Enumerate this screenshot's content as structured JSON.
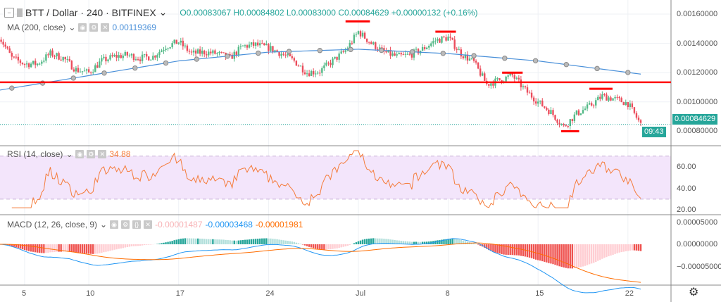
{
  "header": {
    "symbol": "BTT / Dollar · 240 · BITFINEX",
    "o": "O0.00083067",
    "h": "H0.00084802",
    "l": "L0.00083000",
    "c": "C0.00084629",
    "change": "+0.00000132 (+0.16%)"
  },
  "ma": {
    "label": "MA (200, close)",
    "value": "0.00119369",
    "color": "#4a90d9"
  },
  "rsi": {
    "label": "RSI (14, close)",
    "value": "34.88",
    "color": "#f57c3b"
  },
  "macd": {
    "label": "MACD (12, 26, close, 9)",
    "hist": "-0.00001487",
    "macd": "-0.00003468",
    "signal": "-0.00001981"
  },
  "price_label": "0.00084629",
  "countdown": "09:43",
  "colors": {
    "up": "#53b987",
    "down": "#eb4d5c",
    "support": "#ff0000"
  },
  "chart_data": {
    "type": "candlestick",
    "interval": "240",
    "price_axis": {
      "ticks": [
        "0.00160000",
        "0.00140000",
        "0.00120000",
        "0.00100000",
        "0.00080000"
      ],
      "range": [
        0.00075,
        0.00168
      ]
    },
    "rsi_axis": {
      "ticks": [
        "60.00",
        "40.00",
        "20.00"
      ],
      "bands": [
        30,
        70
      ]
    },
    "macd_axis": {
      "ticks": [
        "0.00005000",
        "0.00000000",
        "-0.00005000"
      ]
    },
    "x_ticks": [
      {
        "date": "06-05",
        "label": "5"
      },
      {
        "date": "06-10",
        "label": "10"
      },
      {
        "date": "06-17",
        "label": "17"
      },
      {
        "date": "06-24",
        "label": "24"
      },
      {
        "date": "07-01",
        "label": "Jul"
      },
      {
        "date": "07-08",
        "label": "8"
      },
      {
        "date": "07-15",
        "label": "15"
      },
      {
        "date": "07-22",
        "label": "22"
      }
    ],
    "daily_close": [
      [
        "06-03",
        0.00145
      ],
      [
        "06-04",
        0.0013
      ],
      [
        "06-05",
        0.00126
      ],
      [
        "06-06",
        0.00126
      ],
      [
        "06-07",
        0.00133
      ],
      [
        "06-08",
        0.0013
      ],
      [
        "06-09",
        0.00122
      ],
      [
        "06-10",
        0.0012
      ],
      [
        "06-11",
        0.00128
      ],
      [
        "06-12",
        0.00131
      ],
      [
        "06-13",
        0.00132
      ],
      [
        "06-14",
        0.0013
      ],
      [
        "06-15",
        0.00131
      ],
      [
        "06-16",
        0.00138
      ],
      [
        "06-17",
        0.00141
      ],
      [
        "06-18",
        0.00133
      ],
      [
        "06-19",
        0.00134
      ],
      [
        "06-20",
        0.00133
      ],
      [
        "06-21",
        0.0013
      ],
      [
        "06-22",
        0.00138
      ],
      [
        "06-23",
        0.00139
      ],
      [
        "06-24",
        0.00137
      ],
      [
        "06-25",
        0.00133
      ],
      [
        "06-26",
        0.00128
      ],
      [
        "06-27",
        0.0012
      ],
      [
        "06-28",
        0.00121
      ],
      [
        "06-29",
        0.00128
      ],
      [
        "06-30",
        0.00135
      ],
      [
        "07-01",
        0.00148
      ],
      [
        "07-02",
        0.0014
      ],
      [
        "07-03",
        0.00134
      ],
      [
        "07-04",
        0.00131
      ],
      [
        "07-05",
        0.00132
      ],
      [
        "07-06",
        0.00136
      ],
      [
        "07-07",
        0.00142
      ],
      [
        "07-08",
        0.00144
      ],
      [
        "07-09",
        0.00133
      ],
      [
        "07-10",
        0.00127
      ],
      [
        "07-11",
        0.00112
      ],
      [
        "07-12",
        0.00115
      ],
      [
        "07-13",
        0.00118
      ],
      [
        "07-14",
        0.00108
      ],
      [
        "07-15",
        0.001
      ],
      [
        "07-16",
        0.00093
      ],
      [
        "07-17",
        0.00083
      ],
      [
        "07-18",
        0.00092
      ],
      [
        "07-19",
        0.00097
      ],
      [
        "07-20",
        0.00104
      ],
      [
        "07-21",
        0.00102
      ],
      [
        "07-22",
        0.00099
      ],
      [
        "07-23",
        0.000846
      ]
    ],
    "ma200": [
      [
        "06-03",
        0.00108
      ],
      [
        "06-10",
        0.00118
      ],
      [
        "06-17",
        0.00128
      ],
      [
        "06-24",
        0.00134
      ],
      [
        "07-01",
        0.00136
      ],
      [
        "07-08",
        0.00133
      ],
      [
        "07-15",
        0.00128
      ],
      [
        "07-23",
        0.00119
      ]
    ],
    "support_line": 0.001134,
    "marks": [
      {
        "from": "06-30",
        "to": "07-01.9",
        "price": 0.00155
      },
      {
        "from": "07-07",
        "to": "07-08.6",
        "price": 0.00148
      },
      {
        "from": "07-12.2",
        "to": "07-13.8",
        "price": 0.0012
      },
      {
        "from": "07-19",
        "to": "07-20.8",
        "price": 0.00109
      },
      {
        "from": "07-16.8",
        "to": "07-18.2",
        "price": 0.0008
      }
    ]
  }
}
